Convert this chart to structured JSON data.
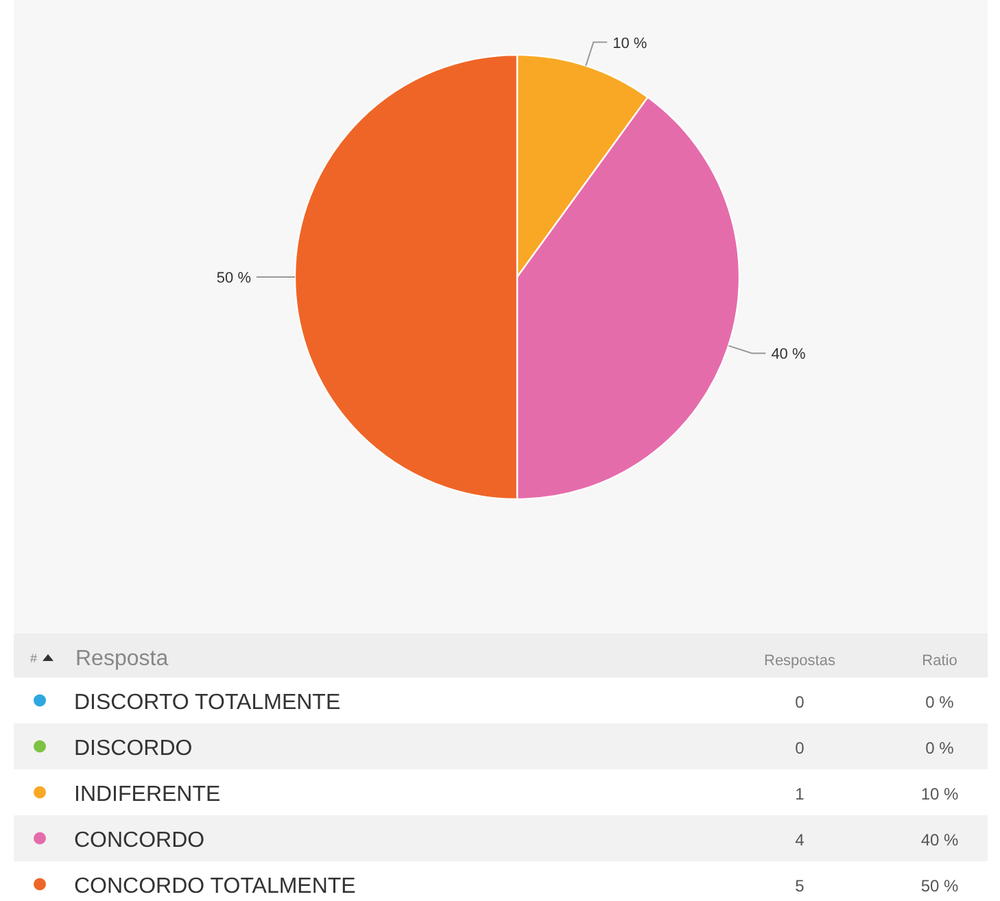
{
  "chart_data": {
    "type": "pie",
    "categories": [
      "DISCORTO TOTALMENTE",
      "DISCORDO",
      "INDIFERENTE",
      "CONCORDO",
      "CONCORDO TOTALMENTE"
    ],
    "values": [
      0,
      0,
      10,
      40,
      50
    ],
    "value_labels": [
      "0 %",
      "0 %",
      "10 %",
      "40 %",
      "50 %"
    ],
    "colors": [
      "#2ea7e0",
      "#7dc242",
      "#f9a825",
      "#e56cab",
      "#ef6527"
    ],
    "legend": "bottom",
    "annotations": [
      "#",
      "Resposta",
      "Respostas",
      "Ratio",
      "0",
      "0",
      "1",
      "4",
      "5"
    ]
  }
}
